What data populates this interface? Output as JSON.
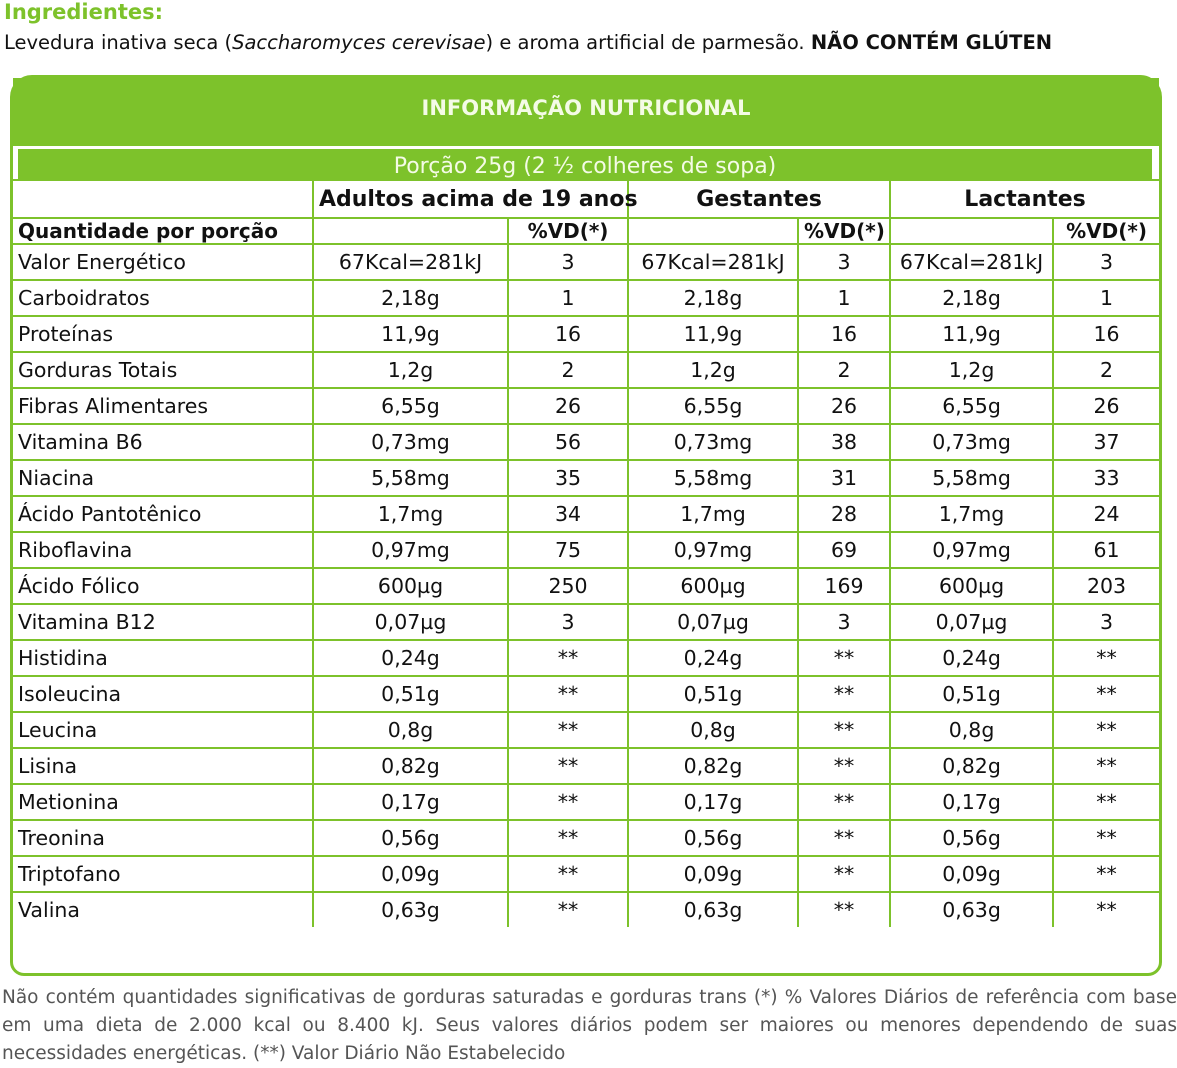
{
  "ingredients": {
    "title": "Ingredientes:",
    "text_before": "Levedura inativa seca (",
    "species": "Saccharomyces cerevisae",
    "text_after": ") e aroma artificial de parmesão. ",
    "gluten": "NÃO CONTÉM GLÚTEN"
  },
  "table": {
    "title": "INFORMAÇÃO NUTRICIONAL",
    "portion": "Porção 25g (2 ½  colheres de sopa)",
    "groups": [
      "Adultos acima de 19 anos",
      "Gestantes",
      "Lactantes"
    ],
    "qty_label": "Quantidade por porção",
    "vd_label": "%VD(*)",
    "colors": {
      "accent": "#7dc22b"
    },
    "rows": [
      [
        "Valor Energético",
        "67Kcal=281kJ",
        "3",
        "67Kcal=281kJ",
        "3",
        "67Kcal=281kJ",
        "3"
      ],
      [
        "Carboidratos",
        "2,18g",
        "1",
        "2,18g",
        "1",
        "2,18g",
        "1"
      ],
      [
        "Proteínas",
        "11,9g",
        "16",
        "11,9g",
        "16",
        "11,9g",
        "16"
      ],
      [
        "Gorduras Totais",
        "1,2g",
        "2",
        "1,2g",
        "2",
        "1,2g",
        "2"
      ],
      [
        "Fibras Alimentares",
        "6,55g",
        "26",
        "6,55g",
        "26",
        "6,55g",
        "26"
      ],
      [
        "Vitamina B6",
        "0,73mg",
        "56",
        "0,73mg",
        "38",
        "0,73mg",
        "37"
      ],
      [
        "Niacina",
        "5,58mg",
        "35",
        "5,58mg",
        "31",
        "5,58mg",
        "33"
      ],
      [
        "Ácido Pantotênico",
        "1,7mg",
        "34",
        "1,7mg",
        "28",
        "1,7mg",
        "24"
      ],
      [
        "Riboflavina",
        "0,97mg",
        "75",
        "0,97mg",
        "69",
        "0,97mg",
        "61"
      ],
      [
        "Ácido Fólico",
        "600µg",
        "250",
        "600µg",
        "169",
        "600µg",
        "203"
      ],
      [
        "Vitamina B12",
        "0,07µg",
        "3",
        "0,07µg",
        "3",
        "0,07µg",
        "3"
      ],
      [
        "Histidina",
        "0,24g",
        "**",
        "0,24g",
        "**",
        "0,24g",
        "**"
      ],
      [
        "Isoleucina",
        "0,51g",
        "**",
        "0,51g",
        "**",
        "0,51g",
        "**"
      ],
      [
        "Leucina",
        "0,8g",
        "**",
        "0,8g",
        "**",
        "0,8g",
        "**"
      ],
      [
        "Lisina",
        "0,82g",
        "**",
        "0,82g",
        "**",
        "0,82g",
        "**"
      ],
      [
        "Metionina",
        "0,17g",
        "**",
        "0,17g",
        "**",
        "0,17g",
        "**"
      ],
      [
        "Treonina",
        "0,56g",
        "**",
        "0,56g",
        "**",
        "0,56g",
        "**"
      ],
      [
        "Triptofano",
        "0,09g",
        "**",
        "0,09g",
        "**",
        "0,09g",
        "**"
      ],
      [
        "Valina",
        "0,63g",
        "**",
        "0,63g",
        "**",
        "0,63g",
        "**"
      ]
    ]
  },
  "footnote": "Não contém quantidades significativas de gorduras saturadas e gorduras trans (*) % Valores Diários de referência com base em uma dieta de 2.000 kcal ou 8.400 kJ. Seus valores diários podem ser maiores ou menores dependendo de suas necessidades energéticas. (**) Valor Diário Não Estabelecido"
}
